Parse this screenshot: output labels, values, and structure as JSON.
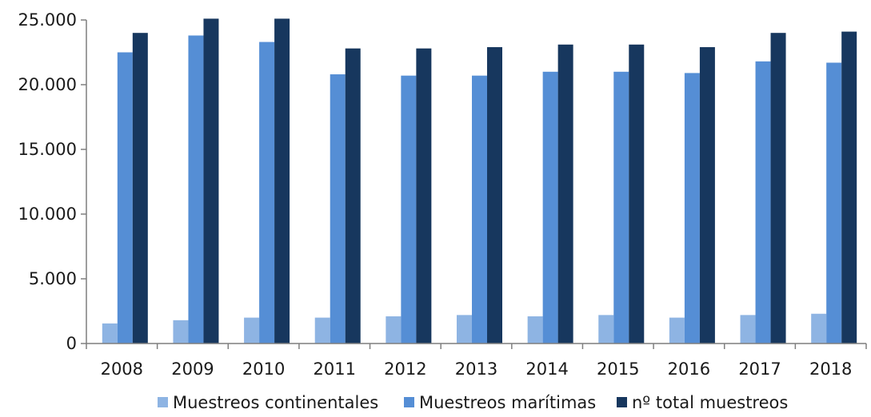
{
  "chart_data": {
    "type": "bar",
    "categories": [
      "2008",
      "2009",
      "2010",
      "2011",
      "2012",
      "2013",
      "2014",
      "2015",
      "2016",
      "2017",
      "2018"
    ],
    "series": [
      {
        "name": "Muestreos continentales",
        "color": "#8eb4e3",
        "values": [
          1550,
          1800,
          2000,
          2000,
          2100,
          2200,
          2100,
          2200,
          2000,
          2200,
          2300
        ]
      },
      {
        "name": "Muestreos marítimas",
        "color": "#558ed5",
        "values": [
          22500,
          23800,
          23300,
          20800,
          20700,
          20700,
          21000,
          21000,
          20900,
          21800,
          21700
        ]
      },
      {
        "name": "nº total muestreos",
        "color": "#17375e",
        "values": [
          24000,
          25100,
          25100,
          22800,
          22800,
          22900,
          23100,
          23100,
          22900,
          24000,
          24100
        ]
      }
    ],
    "ylim": [
      0,
      25000
    ],
    "yticks": [
      0,
      5000,
      10000,
      15000,
      20000,
      25000
    ],
    "ytick_labels": [
      "0",
      "5.000",
      "10.000",
      "15.000",
      "20.000",
      "25.000"
    ],
    "title": "",
    "xlabel": "",
    "ylabel": "",
    "grid": false,
    "legend_position": "bottom"
  }
}
